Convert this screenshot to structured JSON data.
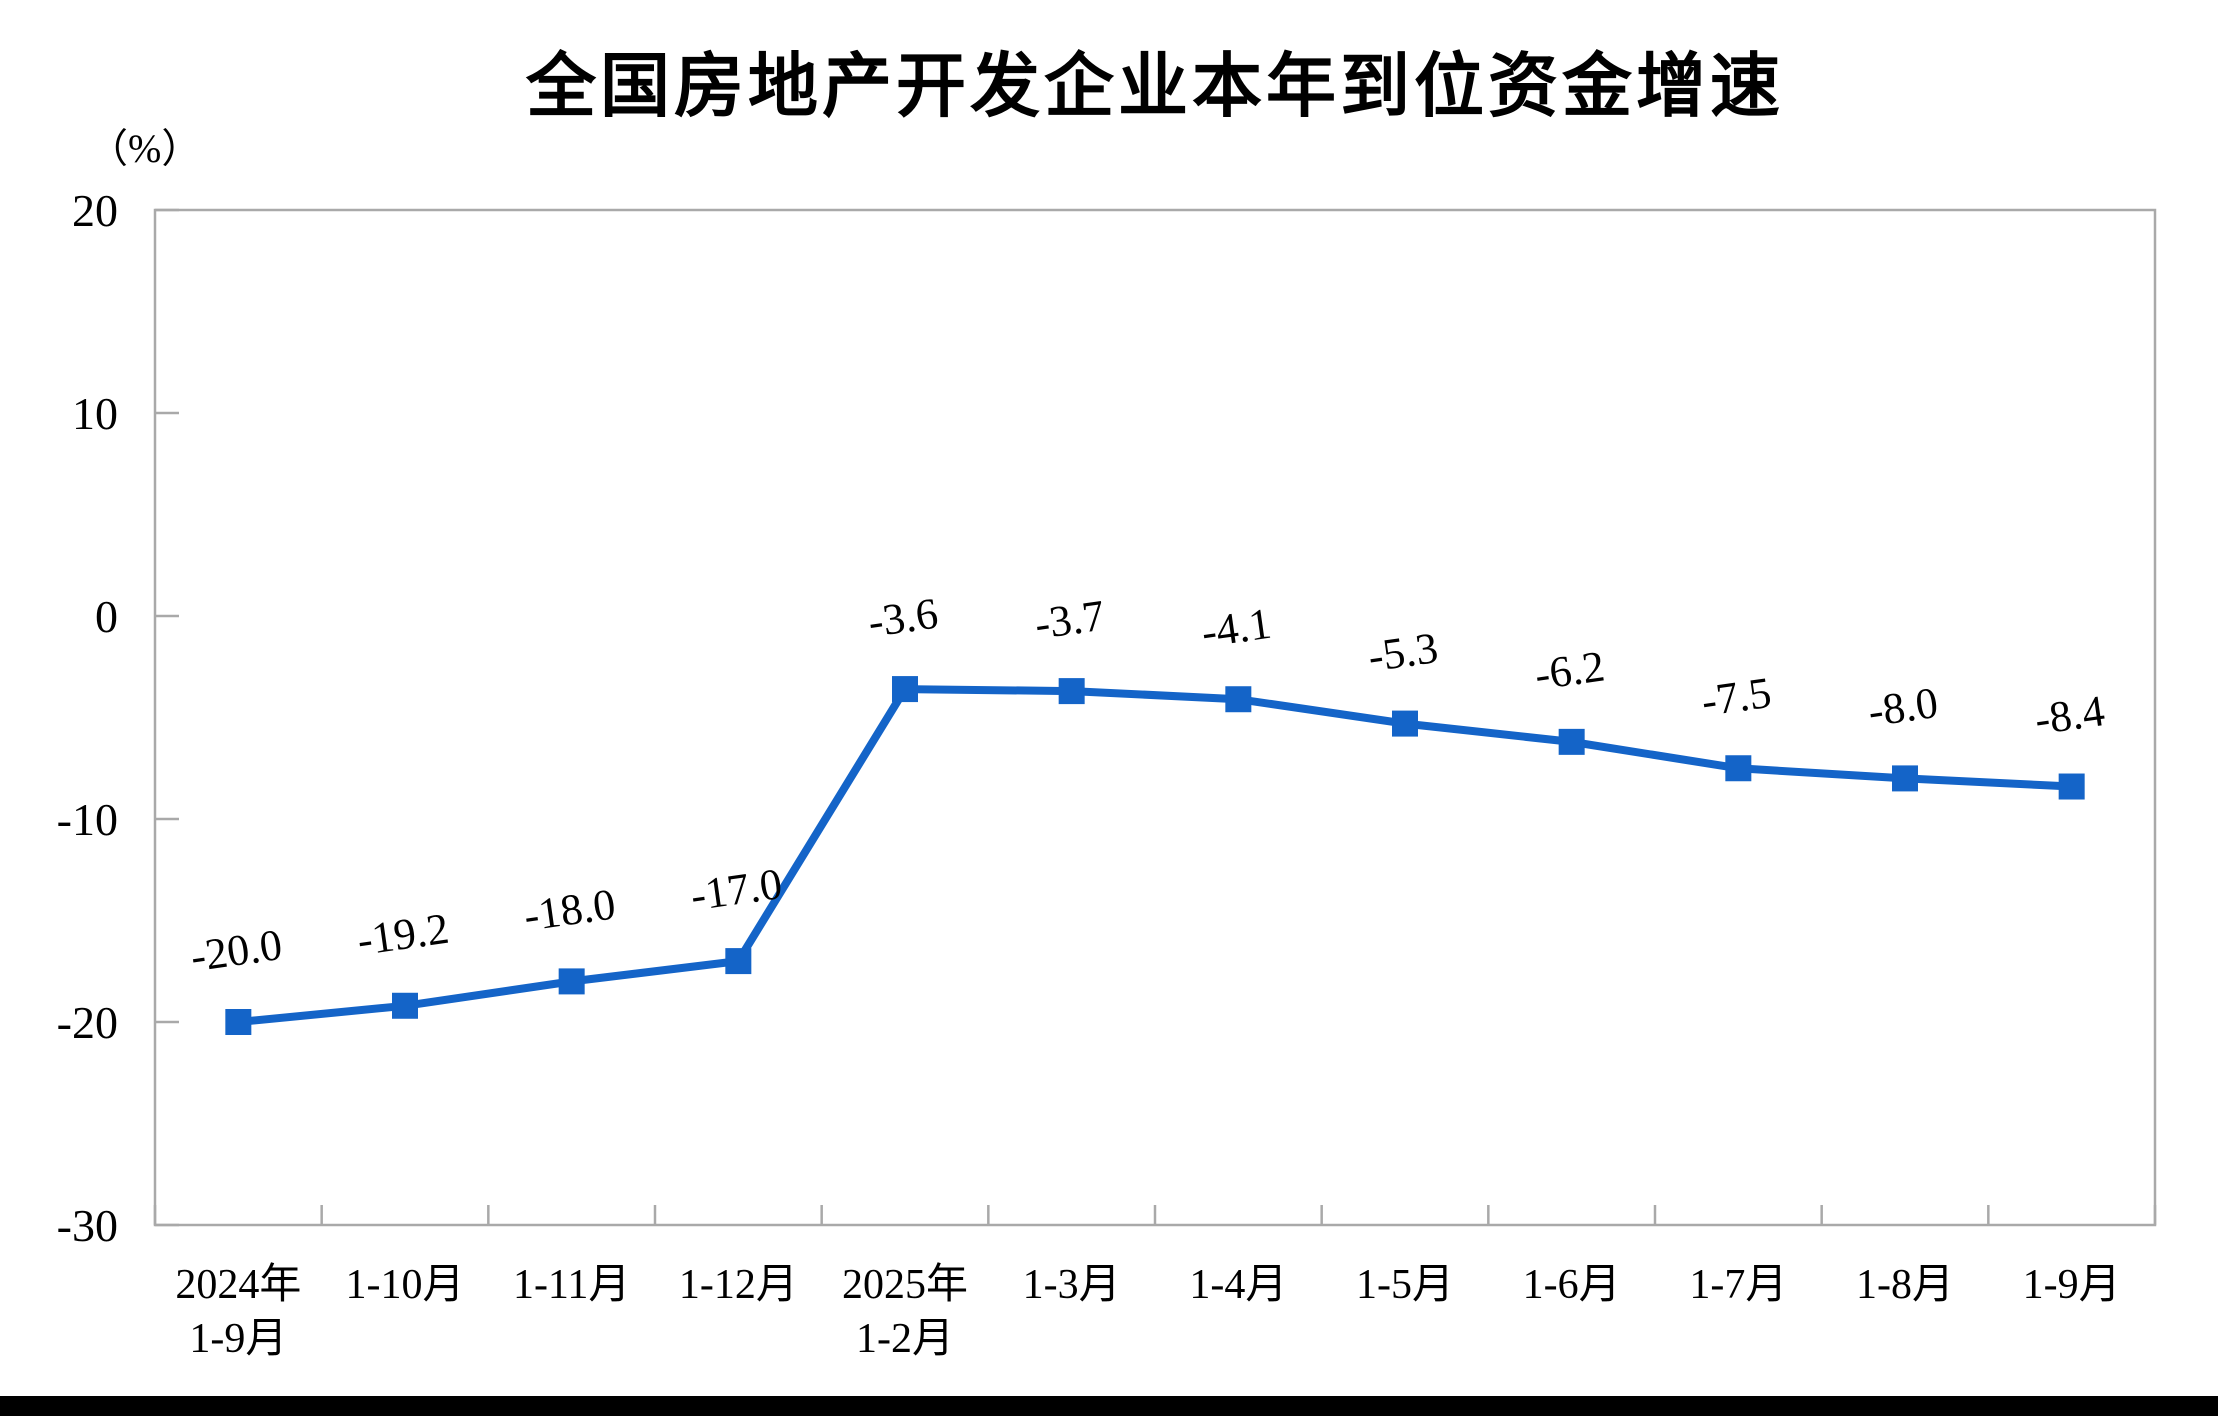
{
  "chart_data": {
    "type": "line",
    "title": "全国房地产开发企业本年到位资金增速",
    "unit_label": "（%）",
    "categories": [
      [
        "2024年",
        "1-9月"
      ],
      [
        "1-10月"
      ],
      [
        "1-11月"
      ],
      [
        "1-12月"
      ],
      [
        "2025年",
        "1-2月"
      ],
      [
        "1-3月"
      ],
      [
        "1-4月"
      ],
      [
        "1-5月"
      ],
      [
        "1-6月"
      ],
      [
        "1-7月"
      ],
      [
        "1-8月"
      ],
      [
        "1-9月"
      ]
    ],
    "values": [
      -20.0,
      -19.2,
      -18.0,
      -17.0,
      -3.6,
      -3.7,
      -4.1,
      -5.3,
      -6.2,
      -7.5,
      -8.0,
      -8.4
    ],
    "data_labels": [
      "-20.0",
      "-19.2",
      "-18.0",
      "-17.0",
      "-3.6",
      "-3.7",
      "-4.1",
      "-5.3",
      "-6.2",
      "-7.5",
      "-8.0",
      "-8.4"
    ],
    "y_ticks": [
      20,
      10,
      0,
      -10,
      -20,
      -30
    ],
    "ylim": [
      -30,
      20
    ],
    "xlabel": "",
    "ylabel": "（%）",
    "grid": false,
    "legend_position": "none",
    "marker": "square",
    "line_color": "#1464C8",
    "axis_color": "#A9A9A9",
    "text_color": "#000000"
  }
}
